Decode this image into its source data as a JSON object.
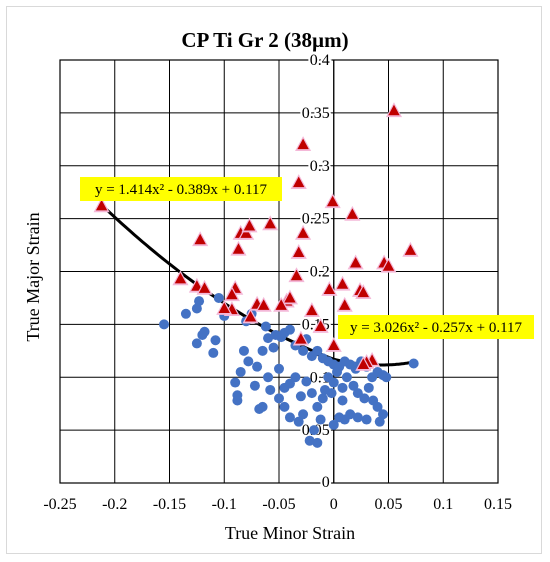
{
  "chart_data": {
    "type": "scatter",
    "title": "CP Ti Gr 2 (38µm)",
    "xlabel": "True Minor Strain",
    "ylabel": "True Major Strain",
    "xlim": [
      -0.25,
      0.15
    ],
    "ylim": [
      0,
      0.4
    ],
    "x_ticks": [
      -0.25,
      -0.2,
      -0.15,
      -0.1,
      -0.05,
      0,
      0.05,
      0.1,
      0.15
    ],
    "y_ticks": [
      0.05,
      0.1,
      0.15,
      0.2,
      0.25,
      0.3,
      0.35,
      0.4
    ],
    "x_tick_labels": [
      "-0.25",
      "-0.2",
      "-0.15",
      "-0.1",
      "-0.05",
      "0",
      "0.05",
      "0.1",
      "0.15"
    ],
    "y_tick_labels": [
      "0.05",
      "0.1",
      "0.15",
      "0.2",
      "0.25",
      "0.3",
      "0.35",
      "0.4"
    ],
    "y_zero_label": "0",
    "grid": true,
    "series": [
      {
        "marker": "triangle",
        "color": "#c00000",
        "halo": "#f4b8d8",
        "points": [
          [
            0.055,
            0.352
          ],
          [
            -0.028,
            0.32
          ],
          [
            -0.032,
            0.284
          ],
          [
            -0.001,
            0.266
          ],
          [
            -0.028,
            0.236
          ],
          [
            -0.212,
            0.262
          ],
          [
            0.017,
            0.254
          ],
          [
            -0.122,
            0.23
          ],
          [
            -0.085,
            0.236
          ],
          [
            -0.08,
            0.236
          ],
          [
            -0.077,
            0.243
          ],
          [
            -0.058,
            0.245
          ],
          [
            -0.087,
            0.221
          ],
          [
            -0.032,
            0.218
          ],
          [
            0.07,
            0.22
          ],
          [
            0.02,
            0.208
          ],
          [
            0.046,
            0.208
          ],
          [
            0.05,
            0.205
          ],
          [
            -0.14,
            0.193
          ],
          [
            -0.125,
            0.186
          ],
          [
            -0.118,
            0.184
          ],
          [
            -0.034,
            0.196
          ],
          [
            0.008,
            0.188
          ],
          [
            -0.004,
            0.183
          ],
          [
            0.024,
            0.182
          ],
          [
            0.027,
            0.18
          ],
          [
            -0.09,
            0.184
          ],
          [
            -0.093,
            0.178
          ],
          [
            -0.07,
            0.169
          ],
          [
            -0.064,
            0.168
          ],
          [
            -0.043,
            0.172
          ],
          [
            -0.04,
            0.175
          ],
          [
            -0.048,
            0.168
          ],
          [
            -0.02,
            0.163
          ],
          [
            0.01,
            0.168
          ],
          [
            -0.093,
            0.164
          ],
          [
            -0.076,
            0.157
          ],
          [
            -0.1,
            0.165
          ],
          [
            -0.012,
            0.148
          ],
          [
            0.0,
            0.13
          ],
          [
            -0.03,
            0.136
          ],
          [
            0.035,
            0.116
          ],
          [
            0.03,
            0.114
          ],
          [
            0.027,
            0.112
          ]
        ]
      },
      {
        "marker": "circle",
        "color": "#4472c4",
        "points": [
          [
            -0.123,
            0.172
          ],
          [
            -0.125,
            0.165
          ],
          [
            -0.105,
            0.175
          ],
          [
            -0.155,
            0.15
          ],
          [
            -0.135,
            0.16
          ],
          [
            -0.118,
            0.143
          ],
          [
            -0.12,
            0.14
          ],
          [
            -0.108,
            0.135
          ],
          [
            -0.1,
            0.158
          ],
          [
            -0.11,
            0.123
          ],
          [
            -0.125,
            0.132
          ],
          [
            -0.082,
            0.125
          ],
          [
            -0.08,
            0.153
          ],
          [
            -0.075,
            0.16
          ],
          [
            -0.062,
            0.148
          ],
          [
            -0.06,
            0.137
          ],
          [
            -0.055,
            0.128
          ],
          [
            -0.053,
            0.14
          ],
          [
            -0.048,
            0.138
          ],
          [
            -0.045,
            0.142
          ],
          [
            -0.04,
            0.145
          ],
          [
            -0.035,
            0.13
          ],
          [
            -0.028,
            0.125
          ],
          [
            -0.025,
            0.136
          ],
          [
            -0.02,
            0.12
          ],
          [
            -0.015,
            0.125
          ],
          [
            -0.01,
            0.118
          ],
          [
            -0.005,
            0.115
          ],
          [
            0.0,
            0.112
          ],
          [
            0.005,
            0.11
          ],
          [
            0.01,
            0.115
          ],
          [
            0.015,
            0.112
          ],
          [
            0.02,
            0.11
          ],
          [
            0.025,
            0.115
          ],
          [
            0.03,
            0.11
          ],
          [
            0.04,
            0.105
          ],
          [
            0.045,
            0.102
          ],
          [
            0.048,
            0.1
          ],
          [
            0.073,
            0.113
          ],
          [
            -0.085,
            0.105
          ],
          [
            -0.078,
            0.115
          ],
          [
            -0.07,
            0.11
          ],
          [
            -0.065,
            0.125
          ],
          [
            -0.09,
            0.095
          ],
          [
            -0.088,
            0.078
          ],
          [
            -0.072,
            0.092
          ],
          [
            -0.06,
            0.1
          ],
          [
            -0.058,
            0.088
          ],
          [
            -0.05,
            0.108
          ],
          [
            -0.045,
            0.09
          ],
          [
            -0.04,
            0.094
          ],
          [
            -0.035,
            0.1
          ],
          [
            -0.03,
            0.082
          ],
          [
            -0.025,
            0.096
          ],
          [
            -0.02,
            0.085
          ],
          [
            -0.015,
            0.072
          ],
          [
            -0.01,
            0.08
          ],
          [
            -0.008,
            0.088
          ],
          [
            -0.005,
            0.1
          ],
          [
            0.0,
            0.095
          ],
          [
            0.003,
            0.105
          ],
          [
            0.008,
            0.09
          ],
          [
            0.012,
            0.1
          ],
          [
            0.018,
            0.092
          ],
          [
            0.022,
            0.085
          ],
          [
            0.028,
            0.08
          ],
          [
            0.032,
            0.09
          ],
          [
            0.036,
            0.078
          ],
          [
            0.04,
            0.072
          ],
          [
            0.045,
            0.065
          ],
          [
            0.042,
            0.058
          ],
          [
            0.03,
            0.06
          ],
          [
            0.022,
            0.062
          ],
          [
            0.015,
            0.065
          ],
          [
            0.01,
            0.06
          ],
          [
            0.005,
            0.062
          ],
          [
            0.0,
            0.055
          ],
          [
            -0.012,
            0.06
          ],
          [
            -0.018,
            0.05
          ],
          [
            -0.022,
            0.04
          ],
          [
            -0.015,
            0.038
          ],
          [
            -0.028,
            0.065
          ],
          [
            -0.032,
            0.058
          ],
          [
            -0.04,
            0.062
          ],
          [
            -0.045,
            0.072
          ],
          [
            -0.065,
            0.072
          ],
          [
            -0.068,
            0.07
          ],
          [
            -0.088,
            0.083
          ],
          [
            -0.05,
            0.08
          ],
          [
            0.02,
            0.108
          ],
          [
            0.035,
            0.1
          ],
          [
            0.008,
            0.078
          ],
          [
            -0.002,
            0.085
          ]
        ]
      }
    ],
    "trendlines": [
      {
        "equation": "y = 1.414x² - 0.389x + 0.117",
        "coefficients": [
          1.414,
          -0.389,
          0.117
        ],
        "x_range": [
          -0.212,
          0.01
        ],
        "label_anchor": "top-left"
      },
      {
        "equation": "y = 3.026x² - 0.257x + 0.117",
        "coefficients": [
          3.026,
          -0.257,
          0.117
        ],
        "x_range": [
          -0.02,
          0.075
        ],
        "label_anchor": "right"
      }
    ],
    "label_background": "#ffff00"
  }
}
